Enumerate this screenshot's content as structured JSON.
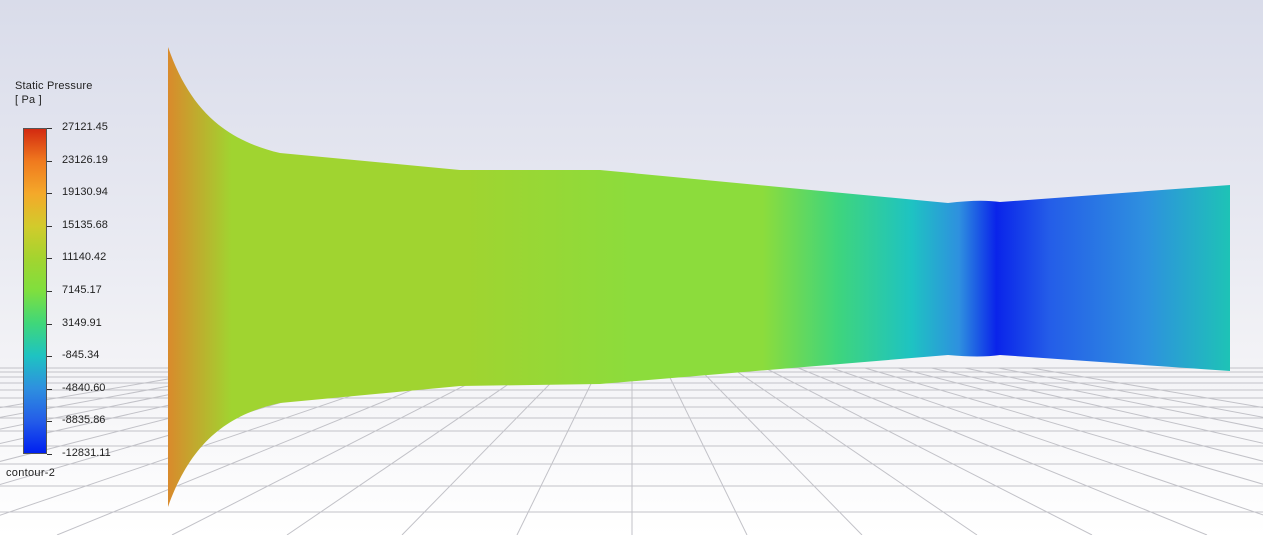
{
  "legend": {
    "title": "Static Pressure",
    "unit": "[ Pa ]",
    "levels": [
      "27121.45",
      "23126.19",
      "19130.94",
      "15135.68",
      "11140.42",
      "7145.17",
      "3149.91",
      "-845.34",
      "-4840.60",
      "-8835.86",
      "-12831.11"
    ],
    "colormap": [
      "#d32a10",
      "#f07a1e",
      "#f4a92a",
      "#d2cb2b",
      "#a3d42f",
      "#7fdf3e",
      "#3fd77a",
      "#1ec3c2",
      "#2e90df",
      "#245de8",
      "#0020f0"
    ]
  },
  "contour_name": "contour-2",
  "colors": {
    "inlet": "#d98a2c",
    "body_upstream": "#a0d430",
    "body_mid": "#8cdc3c",
    "body_downstream": "#3fd57c",
    "throat": "#0a24ea",
    "outlet": "#1ec3b6",
    "grid_line": "#c2c2c8"
  }
}
